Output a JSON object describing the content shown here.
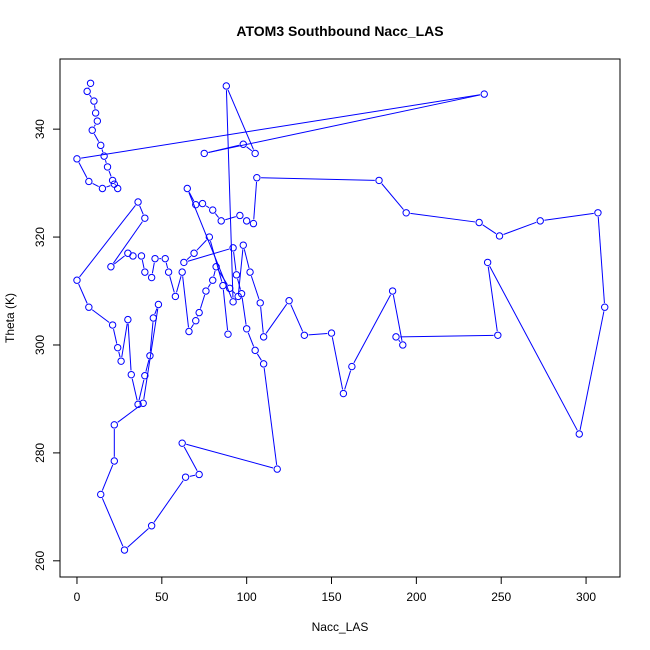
{
  "chart_data": {
    "type": "line",
    "title": "ATOM3 Southbound Nacc_LAS",
    "xlabel": "Nacc_LAS",
    "ylabel": "Theta (K)",
    "xlim": [
      -10,
      320
    ],
    "ylim": [
      257,
      353
    ],
    "xticks": [
      0,
      50,
      100,
      150,
      200,
      250,
      300
    ],
    "yticks": [
      260,
      280,
      300,
      320,
      340
    ],
    "grid": false,
    "legend": "none",
    "series_color": "#0000ff",
    "marker": "open-circle",
    "points": [
      [
        8,
        348.5
      ],
      [
        6,
        347
      ],
      [
        10,
        345.2
      ],
      [
        11,
        343
      ],
      [
        12,
        341.5
      ],
      [
        9,
        339.8
      ],
      [
        14,
        337
      ],
      [
        16,
        335
      ],
      [
        18,
        333
      ],
      [
        21,
        330.5
      ],
      [
        24,
        329
      ],
      [
        22,
        329.8
      ],
      [
        15,
        329
      ],
      [
        7,
        330.3
      ],
      [
        0,
        334.5
      ],
      [
        240,
        346.5
      ],
      [
        75,
        335.5
      ],
      [
        98,
        337.2
      ],
      [
        105,
        335.5
      ],
      [
        88,
        348
      ],
      [
        92,
        308
      ],
      [
        65,
        329
      ],
      [
        70,
        326
      ],
      [
        74,
        326.2
      ],
      [
        80,
        325
      ],
      [
        85,
        323
      ],
      [
        96,
        324
      ],
      [
        100,
        323
      ],
      [
        104,
        322.5
      ],
      [
        106,
        331
      ],
      [
        178,
        330.5
      ],
      [
        194,
        324.5
      ],
      [
        237,
        322.7
      ],
      [
        249,
        320.2
      ],
      [
        273,
        323
      ],
      [
        307,
        324.5
      ],
      [
        311,
        307
      ],
      [
        296,
        283.5
      ],
      [
        242,
        315.3
      ],
      [
        248,
        301.8
      ],
      [
        188,
        301.5
      ],
      [
        192,
        300
      ],
      [
        186,
        310
      ],
      [
        162,
        296
      ],
      [
        157,
        291
      ],
      [
        150,
        302.2
      ],
      [
        134,
        301.8
      ],
      [
        125,
        308.2
      ],
      [
        110,
        301.5
      ],
      [
        108,
        307.8
      ],
      [
        102,
        313.5
      ],
      [
        98,
        318.5
      ],
      [
        95,
        309
      ],
      [
        90,
        310.5
      ],
      [
        82,
        314.5
      ],
      [
        80,
        312
      ],
      [
        76,
        310
      ],
      [
        72,
        306
      ],
      [
        70,
        304.5
      ],
      [
        66,
        302.5
      ],
      [
        62,
        313.5
      ],
      [
        58,
        309
      ],
      [
        54,
        313.5
      ],
      [
        52,
        316
      ],
      [
        46,
        316
      ],
      [
        44,
        312.5
      ],
      [
        40,
        313.5
      ],
      [
        38,
        316.5
      ],
      [
        33,
        316.5
      ],
      [
        30,
        317
      ],
      [
        20,
        314.5
      ],
      [
        40,
        323.5
      ],
      [
        36,
        326.5
      ],
      [
        0,
        312
      ],
      [
        7,
        307
      ],
      [
        21,
        303.7
      ],
      [
        24,
        299.5
      ],
      [
        26,
        297
      ],
      [
        30,
        304.7
      ],
      [
        32,
        294.5
      ],
      [
        36,
        289
      ],
      [
        40,
        294.3
      ],
      [
        43,
        298
      ],
      [
        45,
        305
      ],
      [
        48,
        307.5
      ],
      [
        39,
        289.2
      ],
      [
        22,
        285.2
      ],
      [
        22,
        278.5
      ],
      [
        14,
        272.3
      ],
      [
        28,
        262
      ],
      [
        44,
        266.5
      ],
      [
        64,
        275.5
      ],
      [
        72,
        276
      ],
      [
        62,
        281.8
      ],
      [
        118,
        277
      ],
      [
        110,
        296.5
      ],
      [
        105,
        299
      ],
      [
        100,
        303
      ],
      [
        97,
        309.5
      ],
      [
        94,
        313
      ],
      [
        92,
        318
      ],
      [
        63,
        315.3
      ],
      [
        69,
        317
      ],
      [
        78,
        320
      ],
      [
        86,
        311
      ],
      [
        89,
        302
      ]
    ]
  }
}
